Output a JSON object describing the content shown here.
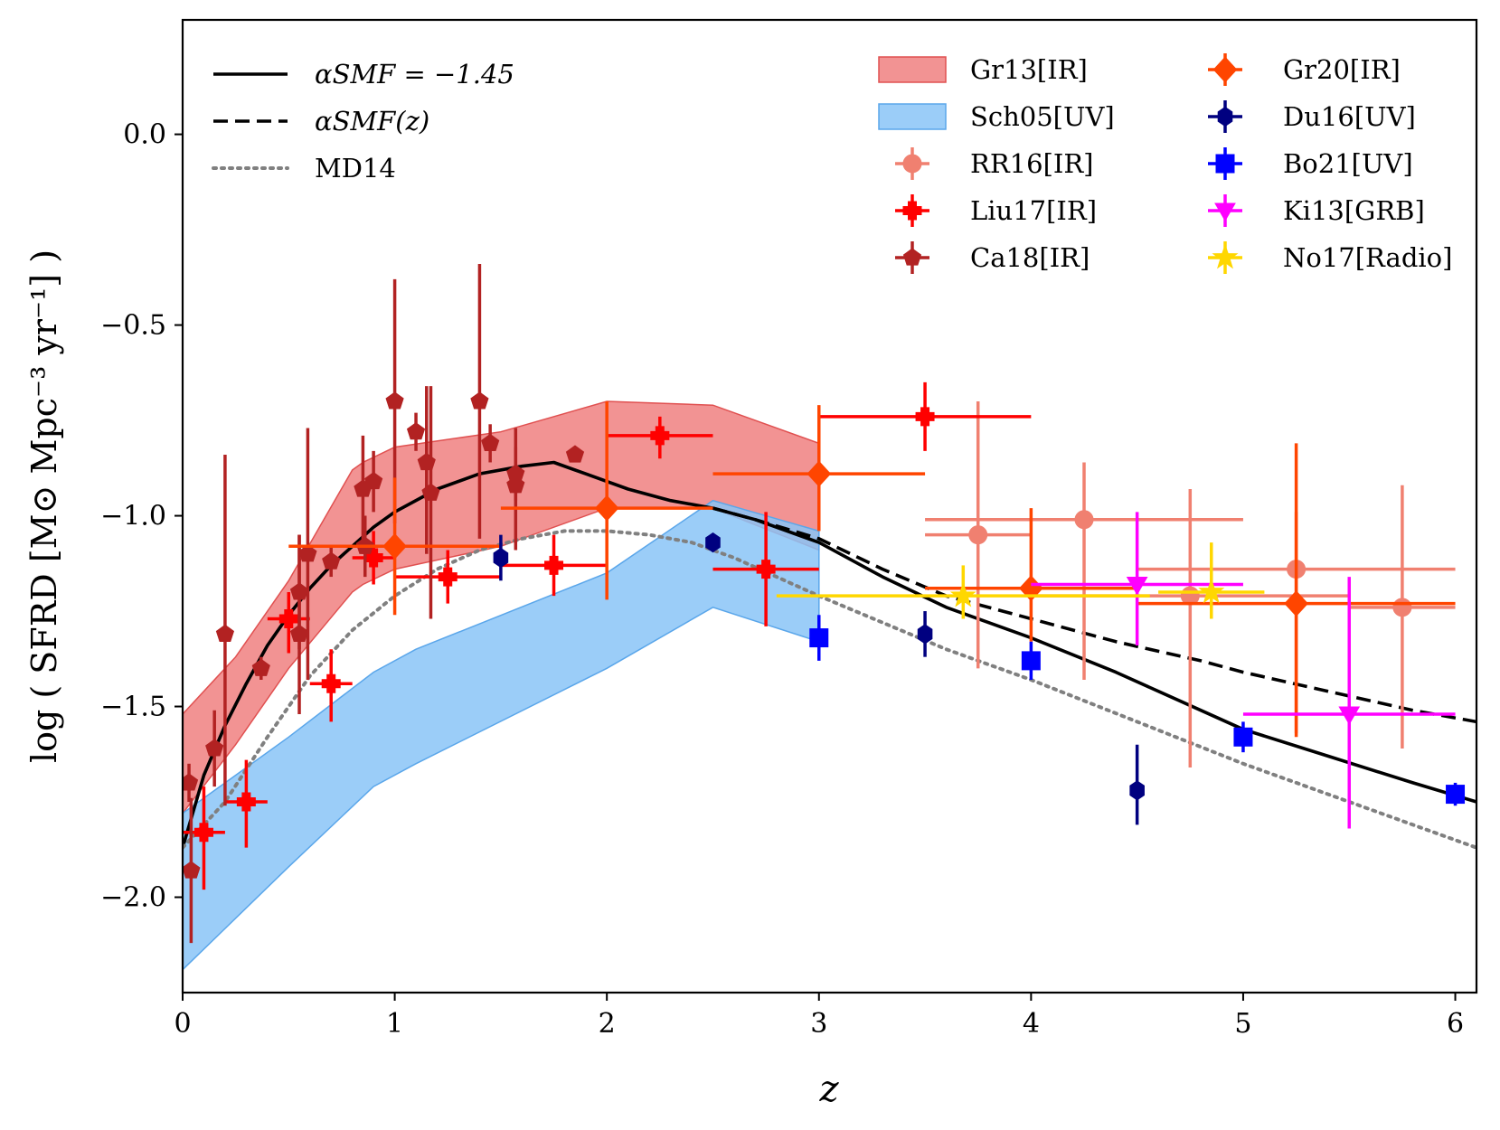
{
  "chart_data": {
    "type": "scatter",
    "title": "",
    "xlabel": "z",
    "ylabel": "log ( SFRD [M⊙ Mpc⁻³ yr⁻¹] )",
    "xlim": [
      0,
      6.1
    ],
    "ylim": [
      -2.25,
      0.3
    ],
    "x_ticks": [
      0,
      1,
      2,
      3,
      4,
      5,
      6
    ],
    "y_ticks": [
      0.0,
      -0.5,
      -1.0,
      -1.5,
      -2.0
    ],
    "x_tick_labels": [
      "0",
      "1",
      "2",
      "3",
      "4",
      "5",
      "6"
    ],
    "y_tick_labels": [
      "0.0",
      "−0.5",
      "−1.0",
      "−1.5",
      "−2.0"
    ],
    "grid": false,
    "legend_placement": "top",
    "lines": [
      {
        "name": "α_SMF = −1.45",
        "legend_label": "αSMF = −1.45",
        "style": "solid",
        "color": "#000000",
        "x": [
          0,
          0.1,
          0.2,
          0.3,
          0.4,
          0.5,
          0.6,
          0.7,
          0.8,
          0.9,
          1.0,
          1.2,
          1.4,
          1.6,
          1.75,
          1.9,
          2.1,
          2.3,
          2.5,
          2.7,
          3.0,
          3.3,
          3.6,
          4.0,
          4.4,
          4.8,
          5.0,
          5.4,
          5.8,
          6.1
        ],
        "y": [
          -1.87,
          -1.68,
          -1.55,
          -1.44,
          -1.34,
          -1.26,
          -1.19,
          -1.13,
          -1.08,
          -1.03,
          -0.99,
          -0.93,
          -0.89,
          -0.87,
          -0.86,
          -0.89,
          -0.93,
          -0.96,
          -0.98,
          -1.01,
          -1.07,
          -1.16,
          -1.24,
          -1.32,
          -1.41,
          -1.51,
          -1.56,
          -1.63,
          -1.7,
          -1.75
        ]
      },
      {
        "name": "α_SMF(z)",
        "legend_label": "αSMF(z)",
        "style": "dashed",
        "color": "#000000",
        "x": [
          2.5,
          2.7,
          3.0,
          3.3,
          3.6,
          4.0,
          4.4,
          4.8,
          5.0,
          5.4,
          5.8,
          6.1
        ],
        "y": [
          -0.98,
          -1.01,
          -1.06,
          -1.14,
          -1.21,
          -1.27,
          -1.33,
          -1.38,
          -1.41,
          -1.46,
          -1.51,
          -1.54
        ]
      },
      {
        "name": "MD14",
        "legend_label": "MD14",
        "style": "dotted",
        "color": "#808080",
        "x": [
          0,
          0.2,
          0.4,
          0.6,
          0.8,
          1.0,
          1.2,
          1.4,
          1.6,
          1.8,
          2.0,
          2.2,
          2.4,
          2.6,
          2.8,
          3.0,
          3.3,
          3.6,
          4.0,
          4.5,
          5.0,
          5.5,
          6.1
        ],
        "y": [
          -1.87,
          -1.75,
          -1.58,
          -1.42,
          -1.3,
          -1.21,
          -1.14,
          -1.09,
          -1.06,
          -1.04,
          -1.04,
          -1.05,
          -1.07,
          -1.11,
          -1.16,
          -1.21,
          -1.28,
          -1.35,
          -1.43,
          -1.54,
          -1.65,
          -1.75,
          -1.87
        ]
      }
    ],
    "bands": [
      {
        "name": "Gr13[IR]",
        "legend_label": "Gr13[IR]",
        "fill": "#f08080",
        "edge": "#e05050",
        "x": [
          0,
          0.25,
          0.5,
          0.8,
          0.85,
          1.0,
          1.5,
          2.0,
          2.5,
          3.0
        ],
        "upper": [
          -1.52,
          -1.37,
          -1.17,
          -0.88,
          -0.86,
          -0.82,
          -0.78,
          -0.7,
          -0.71,
          -0.81
        ],
        "lower": [
          -1.78,
          -1.6,
          -1.4,
          -1.2,
          -1.18,
          -1.14,
          -1.08,
          -0.98,
          -0.98,
          -1.09
        ]
      },
      {
        "name": "Sch05[UV]",
        "legend_label": "Sch05[UV]",
        "fill": "#8ac4f7",
        "edge": "#5aa6ea",
        "x": [
          0,
          0.5,
          0.9,
          1.1,
          2.0,
          2.5,
          3.0
        ],
        "upper": [
          -1.78,
          -1.58,
          -1.41,
          -1.35,
          -1.15,
          -0.96,
          -1.04
        ],
        "lower": [
          -2.19,
          -1.92,
          -1.71,
          -1.65,
          -1.4,
          -1.24,
          -1.33
        ]
      }
    ],
    "series": [
      {
        "name": "RR16[IR]",
        "legend_label": "RR16[IR]",
        "color": "#f08070",
        "marker": "circle",
        "points": [
          {
            "x": 3.75,
            "y": -1.05,
            "xerr": [
              0.25,
              0.25
            ],
            "yerr": [
              0.35,
              0.35
            ]
          },
          {
            "x": 4.25,
            "y": -1.01,
            "xerr": [
              0.75,
              0.75
            ],
            "yerr": [
              0.42,
              0.15
            ]
          },
          {
            "x": 4.75,
            "y": -1.21,
            "xerr": [
              0.75,
              0.75
            ],
            "yerr": [
              0.45,
              0.28
            ]
          },
          {
            "x": 5.25,
            "y": -1.14,
            "xerr": [
              0.75,
              0.75
            ],
            "yerr": [
              0.43,
              0.15
            ]
          },
          {
            "x": 5.75,
            "y": -1.24,
            "xerr": [
              0.25,
              0.25
            ],
            "yerr": [
              0.37,
              0.32
            ]
          }
        ]
      },
      {
        "name": "Liu17[IR]",
        "legend_label": "Liu17[IR]",
        "color": "#ff0000",
        "marker": "plus",
        "points": [
          {
            "x": 0.1,
            "y": -1.83,
            "xerr": [
              0.1,
              0.1
            ],
            "yerr": [
              0.15,
              0.12
            ]
          },
          {
            "x": 0.3,
            "y": -1.75,
            "xerr": [
              0.1,
              0.1
            ],
            "yerr": [
              0.12,
              0.11
            ]
          },
          {
            "x": 0.5,
            "y": -1.27,
            "xerr": [
              0.1,
              0.1
            ],
            "yerr": [
              0.09,
              0.07
            ]
          },
          {
            "x": 0.7,
            "y": -1.44,
            "xerr": [
              0.1,
              0.1
            ],
            "yerr": [
              0.1,
              0.09
            ]
          },
          {
            "x": 0.9,
            "y": -1.11,
            "xerr": [
              0.1,
              0.1
            ],
            "yerr": [
              0.07,
              0.07
            ]
          },
          {
            "x": 1.25,
            "y": -1.16,
            "xerr": [
              0.25,
              0.25
            ],
            "yerr": [
              0.07,
              0.07
            ]
          },
          {
            "x": 1.75,
            "y": -1.13,
            "xerr": [
              0.25,
              0.25
            ],
            "yerr": [
              0.08,
              0.08
            ]
          },
          {
            "x": 2.25,
            "y": -0.79,
            "xerr": [
              0.25,
              0.25
            ],
            "yerr": [
              0.06,
              0.05
            ]
          },
          {
            "x": 2.75,
            "y": -1.14,
            "xerr": [
              0.25,
              0.25
            ],
            "yerr": [
              0.15,
              0.15
            ]
          },
          {
            "x": 3.5,
            "y": -0.74,
            "xerr": [
              0.5,
              0.5
            ],
            "yerr": [
              0.09,
              0.09
            ]
          }
        ]
      },
      {
        "name": "Ca18[IR]",
        "legend_label": "Ca18[IR]",
        "color": "#b22222",
        "marker": "pentagon",
        "points": [
          {
            "x": 0.03,
            "y": -1.7,
            "xerr": [
              0,
              0
            ],
            "yerr": [
              0.05,
              0.05
            ]
          },
          {
            "x": 0.04,
            "y": -1.93,
            "xerr": [
              0,
              0
            ],
            "yerr": [
              0.19,
              0.19
            ]
          },
          {
            "x": 0.15,
            "y": -1.61,
            "xerr": [
              0,
              0
            ],
            "yerr": [
              0.1,
              0.1
            ]
          },
          {
            "x": 0.2,
            "y": -1.31,
            "xerr": [
              0,
              0
            ],
            "yerr": [
              0.45,
              0.47
            ]
          },
          {
            "x": 0.37,
            "y": -1.4,
            "xerr": [
              0,
              0
            ],
            "yerr": [
              0.03,
              0.03
            ]
          },
          {
            "x": 0.55,
            "y": -1.2,
            "xerr": [
              0,
              0
            ],
            "yerr": [
              0.15,
              0.15
            ]
          },
          {
            "x": 0.55,
            "y": -1.31,
            "xerr": [
              0,
              0
            ],
            "yerr": [
              0.21,
              0.26
            ]
          },
          {
            "x": 0.59,
            "y": -1.1,
            "xerr": [
              0,
              0
            ],
            "yerr": [
              0.33,
              0.33
            ]
          },
          {
            "x": 0.7,
            "y": -1.12,
            "xerr": [
              0,
              0
            ],
            "yerr": [
              0.04,
              0.04
            ]
          },
          {
            "x": 0.85,
            "y": -0.93,
            "xerr": [
              0,
              0
            ],
            "yerr": [
              0.17,
              0.14
            ]
          },
          {
            "x": 0.86,
            "y": -1.08,
            "xerr": [
              0,
              0
            ],
            "yerr": [
              0.08,
              0.08
            ]
          },
          {
            "x": 0.9,
            "y": -0.91,
            "xerr": [
              0,
              0
            ],
            "yerr": [
              0.08,
              0.08
            ]
          },
          {
            "x": 1.0,
            "y": -0.7,
            "xerr": [
              0,
              0
            ],
            "yerr": [
              0.32,
              0.32
            ]
          },
          {
            "x": 1.1,
            "y": -0.78,
            "xerr": [
              0,
              0
            ],
            "yerr": [
              0.05,
              0.05
            ]
          },
          {
            "x": 1.15,
            "y": -0.86,
            "xerr": [
              0,
              0
            ],
            "yerr": [
              0.24,
              0.2
            ]
          },
          {
            "x": 1.17,
            "y": -0.94,
            "xerr": [
              0,
              0
            ],
            "yerr": [
              0.33,
              0.28
            ]
          },
          {
            "x": 1.4,
            "y": -0.7,
            "xerr": [
              0,
              0
            ],
            "yerr": [
              0.36,
              0.36
            ]
          },
          {
            "x": 1.45,
            "y": -0.81,
            "xerr": [
              0,
              0
            ],
            "yerr": [
              0.05,
              0.05
            ]
          },
          {
            "x": 1.57,
            "y": -0.92,
            "xerr": [
              0,
              0
            ],
            "yerr": [
              0.17,
              0.15
            ]
          },
          {
            "x": 1.57,
            "y": -0.89,
            "xerr": [
              0,
              0
            ],
            "yerr": [
              0.07,
              0.07
            ]
          },
          {
            "x": 1.85,
            "y": -0.84,
            "xerr": [
              0,
              0
            ],
            "yerr": [
              0,
              0
            ]
          }
        ]
      },
      {
        "name": "Gr20[IR]",
        "legend_label": "Gr20[IR]",
        "color": "#ff4500",
        "marker": "diamond",
        "points": [
          {
            "x": 1.0,
            "y": -1.08,
            "xerr": [
              0.5,
              0.5
            ],
            "yerr": [
              0.18,
              0.18
            ]
          },
          {
            "x": 2.0,
            "y": -0.98,
            "xerr": [
              0.5,
              0.5
            ],
            "yerr": [
              0.24,
              0.28
            ]
          },
          {
            "x": 3.0,
            "y": -0.89,
            "xerr": [
              0.5,
              0.5
            ],
            "yerr": [
              0.15,
              0.18
            ]
          },
          {
            "x": 4.0,
            "y": -1.19,
            "xerr": [
              0.5,
              0.5
            ],
            "yerr": [
              0.14,
              0.21
            ]
          },
          {
            "x": 5.25,
            "y": -1.23,
            "xerr": [
              0.75,
              0.75
            ],
            "yerr": [
              0.35,
              0.42
            ]
          }
        ]
      },
      {
        "name": "Du16[UV]",
        "legend_label": "Du16[UV]",
        "color": "#000080",
        "marker": "hexagon",
        "points": [
          {
            "x": 1.5,
            "y": -1.11,
            "xerr": [
              0,
              0
            ],
            "yerr": [
              0.06,
              0.06
            ]
          },
          {
            "x": 2.5,
            "y": -1.07,
            "xerr": [
              0,
              0
            ],
            "yerr": [
              0,
              0
            ]
          },
          {
            "x": 3.5,
            "y": -1.31,
            "xerr": [
              0,
              0
            ],
            "yerr": [
              0.06,
              0.06
            ]
          },
          {
            "x": 4.5,
            "y": -1.72,
            "xerr": [
              0,
              0
            ],
            "yerr": [
              0.09,
              0.12
            ]
          }
        ]
      },
      {
        "name": "Bo21[UV]",
        "legend_label": "Bo21[UV]",
        "color": "#0000ff",
        "marker": "square",
        "points": [
          {
            "x": 3.0,
            "y": -1.32,
            "xerr": [
              0,
              0
            ],
            "yerr": [
              0.06,
              0.06
            ]
          },
          {
            "x": 4.0,
            "y": -1.38,
            "xerr": [
              0,
              0
            ],
            "yerr": [
              0.05,
              0.05
            ]
          },
          {
            "x": 5.0,
            "y": -1.58,
            "xerr": [
              0,
              0
            ],
            "yerr": [
              0.04,
              0.04
            ]
          },
          {
            "x": 6.0,
            "y": -1.73,
            "xerr": [
              0,
              0
            ],
            "yerr": [
              0.03,
              0.03
            ]
          }
        ]
      },
      {
        "name": "Ki13[GRB]",
        "legend_label": "Ki13[GRB]",
        "color": "#ff00ff",
        "marker": "triangle-down",
        "points": [
          {
            "x": 4.5,
            "y": -1.18,
            "xerr": [
              0.5,
              0.5
            ],
            "yerr": [
              0.16,
              0.19
            ]
          },
          {
            "x": 5.5,
            "y": -1.52,
            "xerr": [
              0.5,
              0.5
            ],
            "yerr": [
              0.3,
              0.36
            ]
          }
        ]
      },
      {
        "name": "No17[Radio]",
        "legend_label": "No17[Radio]",
        "color": "#ffd700",
        "marker": "star",
        "points": [
          {
            "x": 3.68,
            "y": -1.21,
            "xerr": [
              0.88,
              0.88
            ],
            "yerr": [
              0.06,
              0.08
            ]
          },
          {
            "x": 4.85,
            "y": -1.2,
            "xerr": [
              0.25,
              0.25
            ],
            "yerr": [
              0.07,
              0.13
            ]
          }
        ]
      }
    ]
  }
}
